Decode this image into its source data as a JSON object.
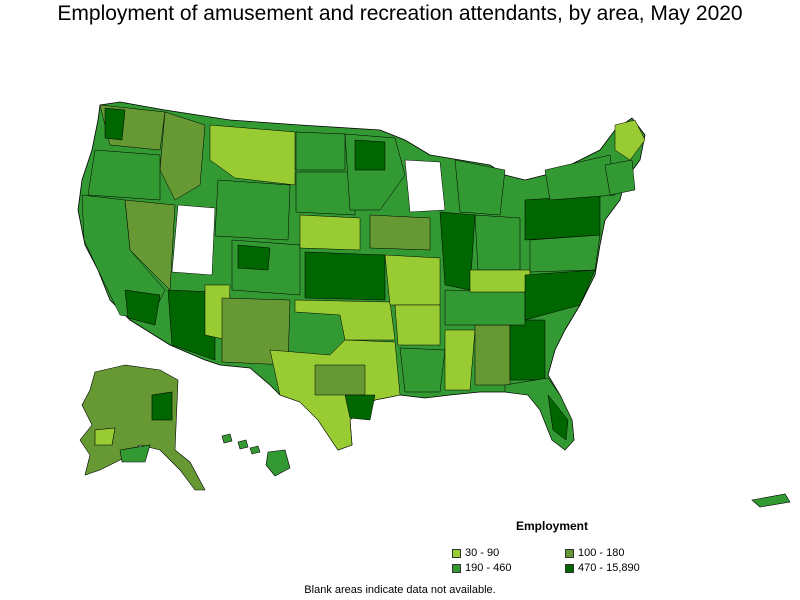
{
  "title": "Employment of amusement and recreation attendants, by area, May 2020",
  "legend": {
    "title": "Employment",
    "items": [
      {
        "label": "30 - 90",
        "color": "#99cc33"
      },
      {
        "label": "100 - 180",
        "color": "#669933"
      },
      {
        "label": "190 - 460",
        "color": "#339933"
      },
      {
        "label": "470 - 15,890",
        "color": "#006600"
      }
    ]
  },
  "footnote": "Blank areas indicate data not available.",
  "colors": {
    "border": "#000000",
    "no_data": "#ffffff"
  }
}
